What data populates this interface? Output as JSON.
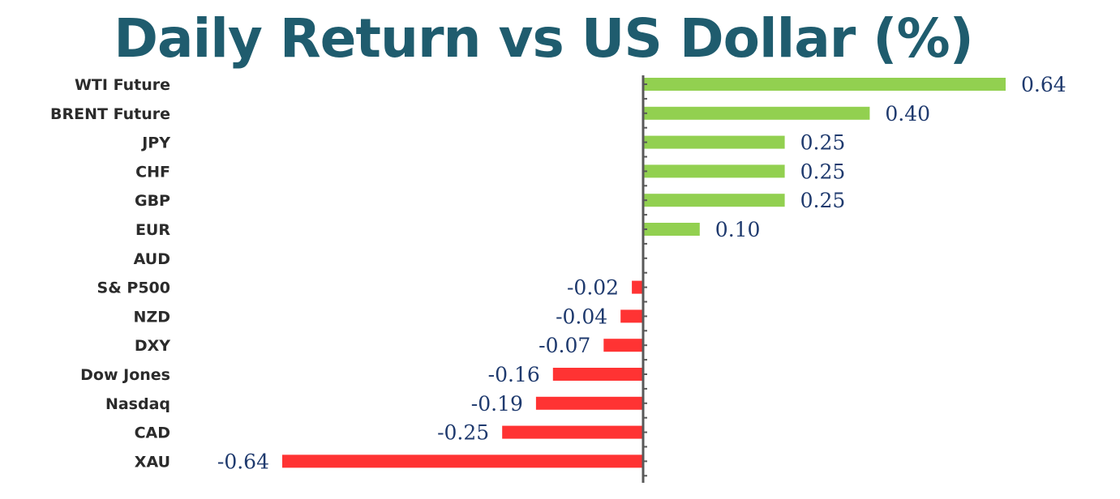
{
  "colors": {
    "title": "#1f5c6e",
    "category_label": "#2b2b2b",
    "value_label": "#1f3a6e",
    "positive_bar": "#92d050",
    "negative_bar": "#ff3333",
    "axis": "#595959"
  },
  "chart_data": {
    "type": "bar",
    "orientation": "horizontal",
    "title": "Daily Return vs US Dollar (%)",
    "xlabel": "",
    "ylabel": "",
    "xlim": [
      -0.64,
      0.64
    ],
    "grid": false,
    "legend": "none",
    "categories": [
      "WTI Future",
      "BRENT Future",
      "JPY",
      "CHF",
      "GBP",
      "EUR",
      "AUD",
      "S& P500",
      "NZD",
      "DXY",
      "Dow Jones",
      "Nasdaq",
      "CAD",
      "XAU"
    ],
    "values": [
      0.64,
      0.4,
      0.25,
      0.25,
      0.25,
      0.1,
      0.0,
      -0.02,
      -0.04,
      -0.07,
      -0.16,
      -0.19,
      -0.25,
      -0.64
    ],
    "value_labels": [
      "0.64",
      "0.40",
      "0.25",
      "0.25",
      "0.25",
      "0.10",
      "",
      "-0.02",
      "-0.04",
      "-0.07",
      "-0.16",
      "-0.19",
      "-0.25",
      "-0.64"
    ]
  }
}
